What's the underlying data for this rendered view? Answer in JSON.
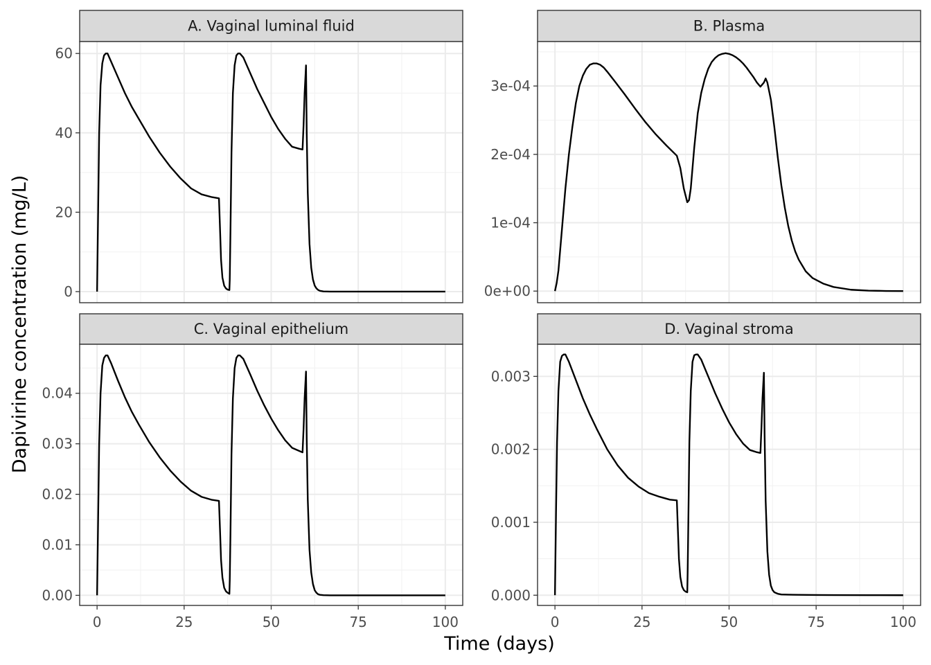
{
  "figure": {
    "xlabel": "Time (days)",
    "ylabel": "Dapivirine concentration (mg/L)"
  },
  "chart_data": [
    {
      "type": "line",
      "title": "A. Vaginal luminal fluid",
      "xlim": [
        -5,
        105
      ],
      "ylim": [
        -2.8,
        63
      ],
      "x_ticks": [
        0,
        25,
        50,
        75,
        100
      ],
      "x_tick_labels": [
        "0",
        "25",
        "50",
        "75",
        "100"
      ],
      "y_ticks": [
        0,
        20,
        40,
        60
      ],
      "y_tick_labels": [
        "0",
        "20",
        "40",
        "60"
      ],
      "show_x_ticks": false,
      "grid": true,
      "series": [
        {
          "x": [
            0,
            0.3,
            0.6,
            1,
            1.5,
            2,
            2.5,
            3,
            4,
            6,
            8,
            10,
            12,
            15,
            18,
            21,
            24,
            27,
            30,
            33,
            35,
            35.3,
            35.6,
            36,
            36.5,
            37,
            37.5,
            38,
            38.1,
            38.3,
            38.6,
            39,
            39.5,
            40,
            40.5,
            41,
            42,
            44,
            46,
            48,
            50,
            52,
            54,
            56,
            58,
            59,
            59.3,
            59.6,
            60,
            60.2,
            60.5,
            61,
            61.5,
            62,
            62.5,
            63,
            63.5,
            64,
            65,
            67,
            70,
            75,
            80,
            90,
            100
          ],
          "y": [
            0,
            20,
            40,
            52,
            57.5,
            59.5,
            60,
            60,
            58,
            54,
            50,
            46.5,
            43.5,
            39,
            35,
            31.5,
            28.5,
            26,
            24.5,
            23.8,
            23.5,
            16,
            8,
            3.5,
            1.5,
            0.8,
            0.5,
            0.4,
            3,
            15,
            35,
            50,
            57,
            59.5,
            60,
            60,
            59,
            55,
            51,
            47.5,
            44,
            41,
            38.5,
            36.5,
            36,
            35.8,
            42,
            50,
            57,
            40,
            25,
            12,
            6,
            3,
            1.5,
            0.8,
            0.4,
            0.2,
            0.05,
            0,
            0,
            0,
            0,
            0,
            0
          ]
        }
      ]
    },
    {
      "type": "line",
      "title": "B. Plasma",
      "xlim": [
        -5,
        105
      ],
      "ylim": [
        -1.7e-05,
        0.000365
      ],
      "x_ticks": [
        0,
        25,
        50,
        75,
        100
      ],
      "x_tick_labels": [
        "0",
        "25",
        "50",
        "75",
        "100"
      ],
      "y_ticks": [
        0,
        0.0001,
        0.0002,
        0.0003
      ],
      "y_tick_labels": [
        "0e+00",
        "1e-04",
        "2e-04",
        "3e-04"
      ],
      "show_x_ticks": false,
      "grid": true,
      "series": [
        {
          "x": [
            0,
            0.5,
            1,
            2,
            3,
            4,
            5,
            6,
            7,
            8,
            9,
            10,
            11,
            12,
            13,
            14,
            15,
            17,
            20,
            23,
            26,
            29,
            32,
            35,
            36,
            37,
            38,
            38.5,
            39,
            40,
            41,
            42,
            43,
            44,
            45,
            46,
            47,
            48,
            49,
            50,
            51,
            52,
            53,
            54,
            55,
            56,
            57,
            58,
            59,
            60,
            60.5,
            61,
            62,
            63,
            64,
            65,
            66,
            67,
            68,
            69,
            70,
            72,
            74,
            77,
            80,
            85,
            90,
            95,
            100
          ],
          "y": [
            0,
            1.2e-05,
            3e-05,
            9e-05,
            0.00015,
            0.0002,
            0.00024,
            0.000275,
            0.0003,
            0.000315,
            0.000325,
            0.000331,
            0.000333,
            0.000333,
            0.000331,
            0.000327,
            0.000321,
            0.000308,
            0.000288,
            0.000267,
            0.000247,
            0.000229,
            0.000213,
            0.000198,
            0.00018,
            0.00015,
            0.00013,
            0.000133,
            0.00015,
            0.00021,
            0.00026,
            0.00029,
            0.00031,
            0.000325,
            0.000335,
            0.000341,
            0.000345,
            0.000347,
            0.000348,
            0.000347,
            0.000345,
            0.000342,
            0.000338,
            0.000333,
            0.000327,
            0.00032,
            0.000313,
            0.000305,
            0.000299,
            0.000305,
            0.000311,
            0.000305,
            0.00028,
            0.00024,
            0.000195,
            0.000155,
            0.000122,
            9.5e-05,
            7.4e-05,
            5.8e-05,
            4.6e-05,
            2.9e-05,
            1.9e-05,
            1.1e-05,
            6e-06,
            2e-06,
            7e-07,
            2e-07,
            0
          ]
        }
      ]
    },
    {
      "type": "line",
      "title": "C. Vaginal epithelium",
      "xlim": [
        -5,
        105
      ],
      "ylim": [
        -0.002,
        0.0497
      ],
      "x_ticks": [
        0,
        25,
        50,
        75,
        100
      ],
      "x_tick_labels": [
        "0",
        "25",
        "50",
        "75",
        "100"
      ],
      "y_ticks": [
        0,
        0.01,
        0.02,
        0.03,
        0.04
      ],
      "y_tick_labels": [
        "0.00",
        "0.01",
        "0.02",
        "0.03",
        "0.04"
      ],
      "show_x_ticks": true,
      "grid": true,
      "series": [
        {
          "x": [
            0,
            0.3,
            0.6,
            1,
            1.5,
            2,
            2.5,
            3,
            4,
            6,
            8,
            10,
            12,
            15,
            18,
            21,
            24,
            27,
            30,
            33,
            35,
            35.3,
            35.6,
            36,
            36.5,
            37,
            37.5,
            38,
            38.1,
            38.3,
            38.6,
            39,
            39.5,
            40,
            40.5,
            41,
            42,
            44,
            46,
            48,
            50,
            52,
            54,
            56,
            58,
            59,
            59.3,
            59.6,
            60,
            60.2,
            60.5,
            61,
            61.5,
            62,
            62.5,
            63,
            63.5,
            64,
            65,
            67,
            70,
            75,
            80,
            90,
            100
          ],
          "y": [
            0,
            0.015,
            0.03,
            0.04,
            0.0455,
            0.047,
            0.0475,
            0.0475,
            0.046,
            0.0425,
            0.0392,
            0.0363,
            0.0338,
            0.0303,
            0.0273,
            0.0247,
            0.0225,
            0.0207,
            0.0195,
            0.0189,
            0.0187,
            0.013,
            0.007,
            0.0035,
            0.0015,
            0.0008,
            0.0005,
            0.0003,
            0.003,
            0.012,
            0.028,
            0.039,
            0.045,
            0.047,
            0.0475,
            0.0475,
            0.0468,
            0.0437,
            0.0405,
            0.0376,
            0.035,
            0.0327,
            0.0307,
            0.0292,
            0.0286,
            0.0283,
            0.033,
            0.039,
            0.0443,
            0.031,
            0.019,
            0.009,
            0.0045,
            0.0022,
            0.001,
            0.0005,
            0.0002,
            0.0001,
            3e-05,
            0,
            0,
            0,
            0,
            0,
            0
          ]
        }
      ]
    },
    {
      "type": "line",
      "title": "D. Vaginal stroma",
      "xlim": [
        -5,
        105
      ],
      "ylim": [
        -0.00014,
        0.00344
      ],
      "x_ticks": [
        0,
        25,
        50,
        75,
        100
      ],
      "x_tick_labels": [
        "0",
        "25",
        "50",
        "75",
        "100"
      ],
      "y_ticks": [
        0,
        0.001,
        0.002,
        0.003
      ],
      "y_tick_labels": [
        "0.000",
        "0.001",
        "0.002",
        "0.003"
      ],
      "show_x_ticks": true,
      "grid": true,
      "series": [
        {
          "x": [
            0,
            0.3,
            0.6,
            1,
            1.5,
            2,
            2.5,
            3,
            4,
            6,
            8,
            10,
            12,
            15,
            18,
            21,
            24,
            27,
            30,
            33,
            35,
            35.3,
            35.6,
            36,
            36.5,
            37,
            37.5,
            38,
            38.1,
            38.3,
            38.6,
            39,
            39.5,
            40,
            40.5,
            41,
            42,
            44,
            46,
            48,
            50,
            52,
            54,
            56,
            58,
            59,
            59.3,
            59.6,
            60,
            60.2,
            60.5,
            61,
            61.5,
            62,
            62.5,
            63,
            63.5,
            64,
            65,
            67,
            70,
            75,
            80,
            90,
            100
          ],
          "y": [
            0,
            0.0011,
            0.0021,
            0.0028,
            0.0032,
            0.00328,
            0.0033,
            0.0033,
            0.0032,
            0.00295,
            0.0027,
            0.00248,
            0.00228,
            0.002,
            0.00178,
            0.00161,
            0.00149,
            0.0014,
            0.00135,
            0.00131,
            0.0013,
            0.0009,
            0.0005,
            0.00025,
            0.00012,
            7e-05,
            5e-05,
            4e-05,
            0.0003,
            0.001,
            0.0021,
            0.0028,
            0.0032,
            0.00329,
            0.0033,
            0.0033,
            0.00323,
            0.003,
            0.00277,
            0.00256,
            0.00237,
            0.00221,
            0.00208,
            0.00199,
            0.00196,
            0.00195,
            0.0023,
            0.0027,
            0.00305,
            0.0022,
            0.0013,
            0.0006,
            0.00028,
            0.00013,
            7e-05,
            4e-05,
            3e-05,
            2e-05,
            1e-05,
            8e-06,
            5e-06,
            3e-06,
            2e-06,
            1e-06,
            0
          ]
        }
      ]
    }
  ]
}
